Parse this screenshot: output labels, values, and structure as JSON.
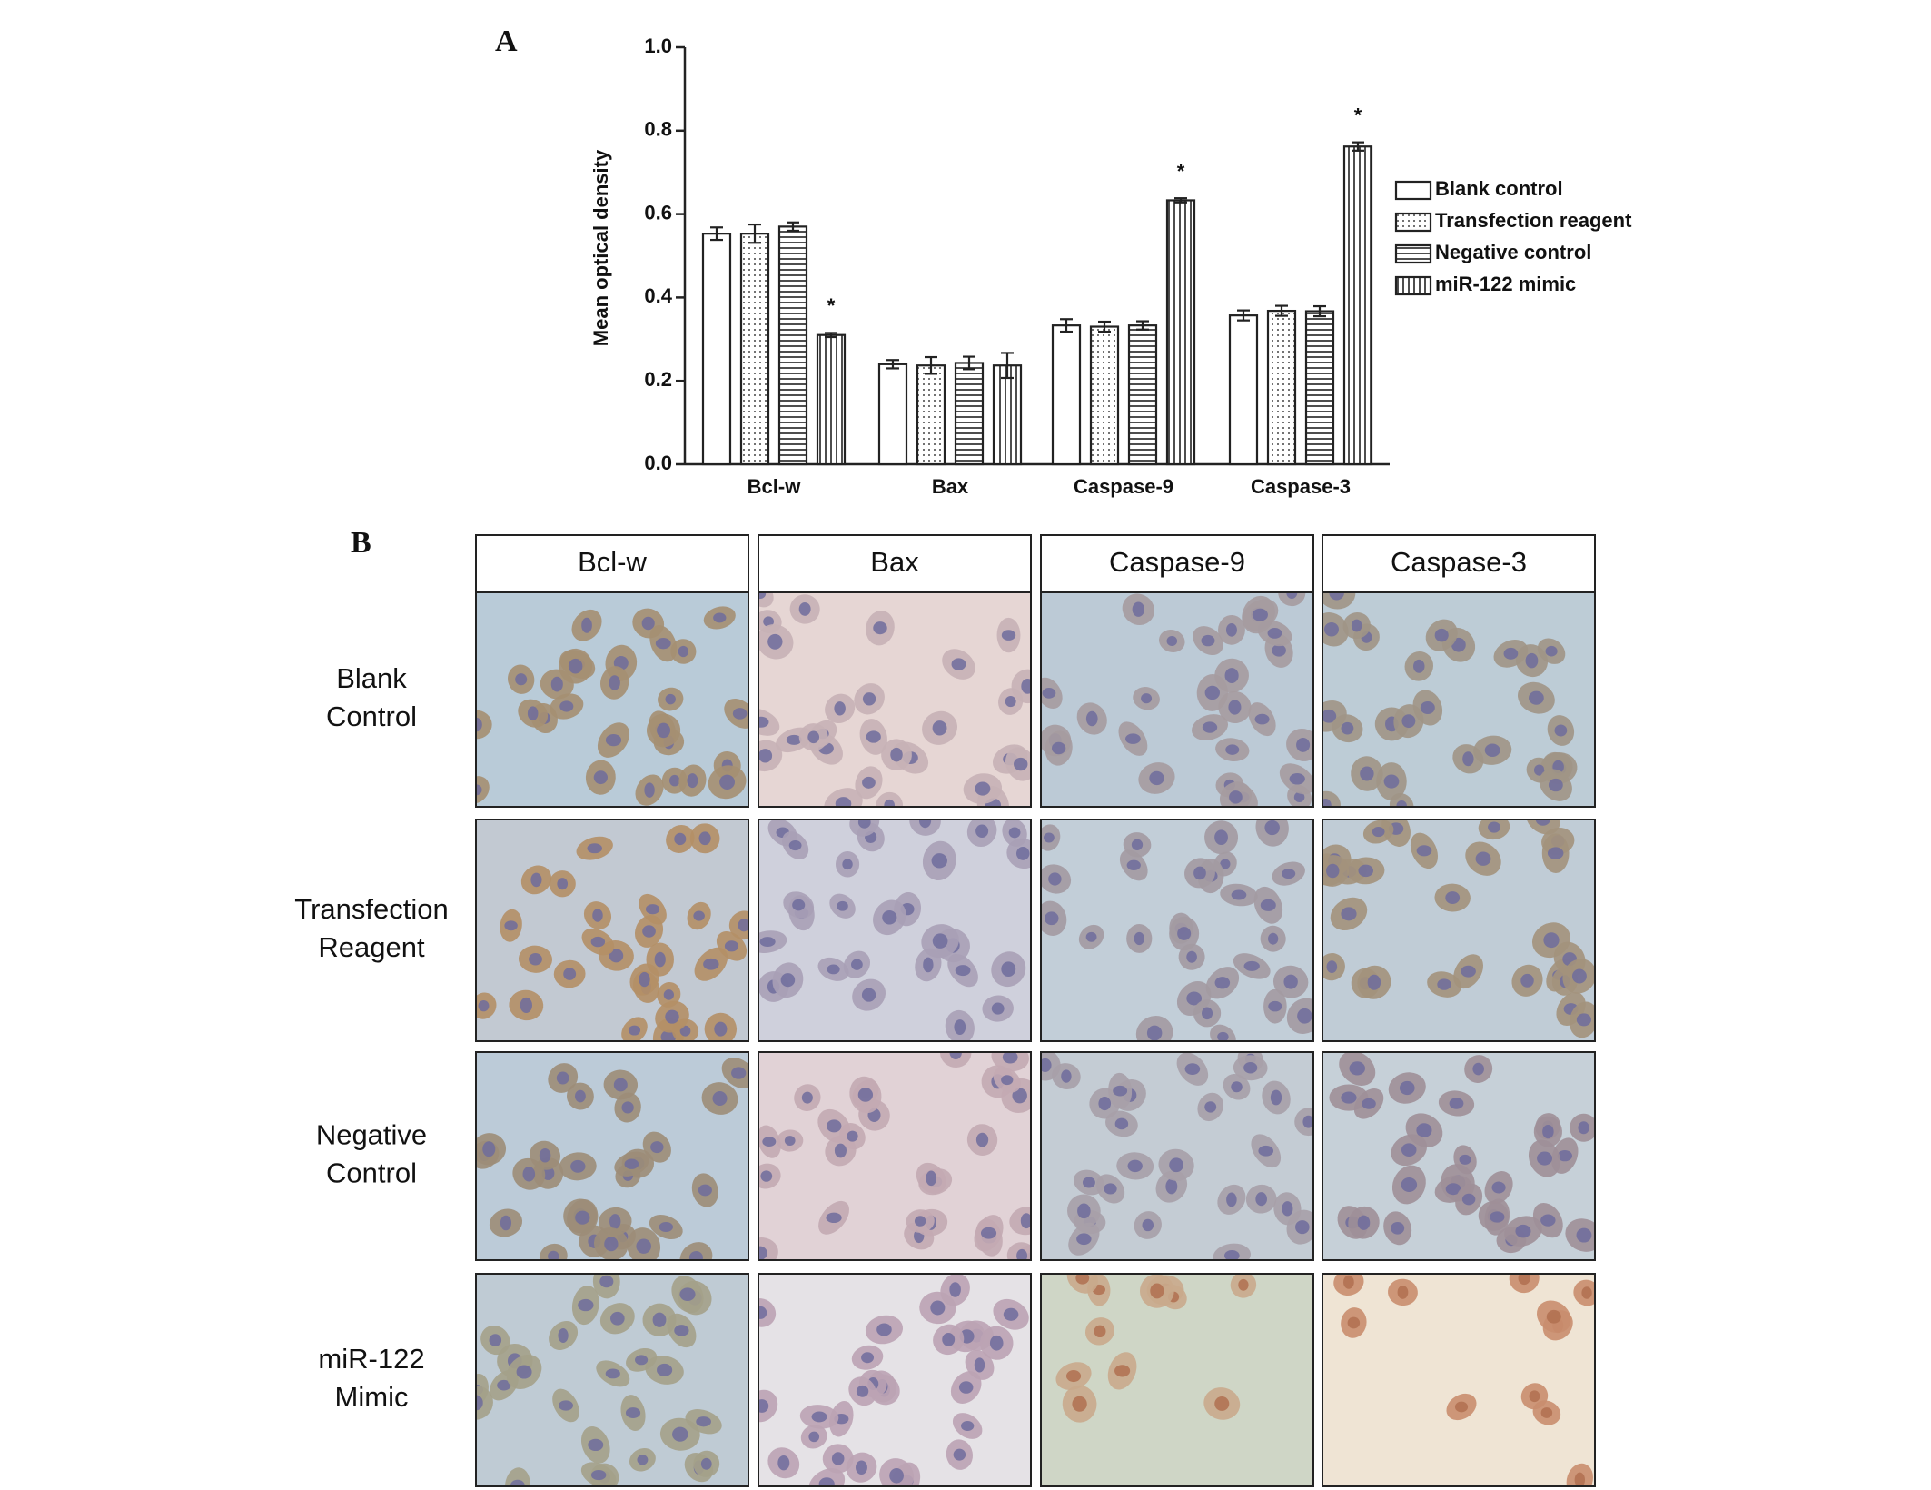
{
  "chart_data": {
    "type": "bar",
    "panel_label": "A",
    "ylabel": "Mean optical density",
    "categories": [
      "Bcl-w",
      "Bax",
      "Caspase-9",
      "Caspase-3"
    ],
    "series": [
      {
        "name": "Blank control",
        "color": "#ffffff",
        "pattern": "none",
        "values": [
          0.553,
          0.24,
          0.333,
          0.357
        ],
        "errors": [
          0.015,
          0.01,
          0.015,
          0.012
        ]
      },
      {
        "name": "Transfection reagent",
        "color": "#ffffff",
        "pattern": "dots",
        "values": [
          0.553,
          0.237,
          0.33,
          0.368
        ],
        "errors": [
          0.022,
          0.02,
          0.012,
          0.012
        ]
      },
      {
        "name": "Negative control",
        "color": "#ffffff",
        "pattern": "horizontal",
        "values": [
          0.57,
          0.243,
          0.333,
          0.367
        ],
        "errors": [
          0.01,
          0.015,
          0.01,
          0.012
        ]
      },
      {
        "name": "miR-122 mimic",
        "color": "#ffffff",
        "pattern": "vertical",
        "values": [
          0.31,
          0.237,
          0.633,
          0.762
        ],
        "errors": [
          0.005,
          0.03,
          0.005,
          0.01
        ],
        "markers": [
          "*",
          null,
          "*",
          "*"
        ]
      }
    ],
    "ylim": [
      0,
      1.0
    ],
    "yticks": [
      {
        "value": 0,
        "label": "0.0"
      },
      {
        "value": 0.2,
        "label": "0.2"
      },
      {
        "value": 0.4,
        "label": "0.4"
      },
      {
        "value": 0.6,
        "label": "0.6"
      },
      {
        "value": 0.8,
        "label": "0.8"
      },
      {
        "value": 1.0,
        "label": "1.0"
      }
    ],
    "legend": "right"
  },
  "panel_b": {
    "panel_label": "B",
    "columns": [
      "Bcl-w",
      "Bax",
      "Caspase-9",
      "Caspase-3"
    ],
    "rows": [
      [
        "Blank",
        "Control"
      ],
      [
        "Transfection",
        "Reagent"
      ],
      [
        "Negative",
        "Control"
      ],
      [
        "miR-122",
        "Mimic"
      ]
    ]
  }
}
